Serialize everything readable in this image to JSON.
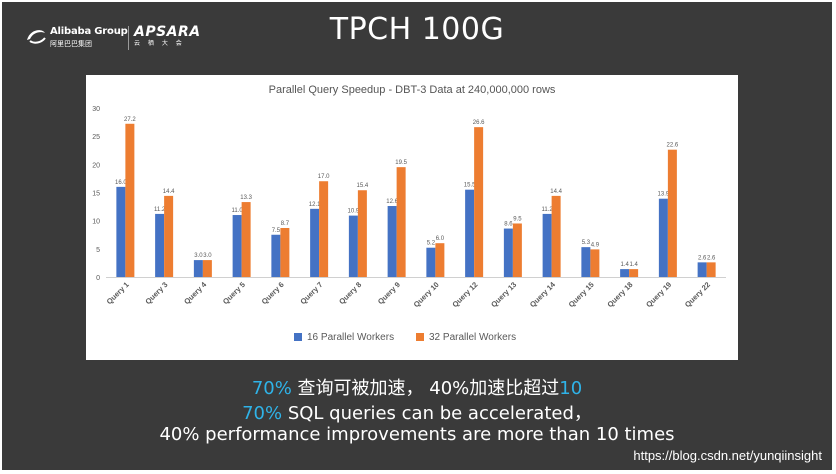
{
  "slide": {
    "title": "TPCH 100G",
    "logo_alibaba_text": "Alibaba Group",
    "logo_alibaba_sub": "阿里巴巴集团",
    "logo_apsara_text": "APSARA",
    "logo_apsara_sub": "云 栖 大 会",
    "caption_line1_hl1": "70%",
    "caption_line1_mid": " 查询可被加速， 40%加速比超过",
    "caption_line1_hl2": "10",
    "caption_line2_hl": "70%",
    "caption_line2_rest": " SQL queries can be accelerated，",
    "caption_line3": "40% performance improvements are more than 10 times",
    "watermark": "https://blog.csdn.net/yunqiinsight"
  },
  "chart_data": {
    "type": "bar",
    "title": "Parallel Query Speedup - DBT-3 Data at 240,000,000 rows",
    "categories": [
      "Query 1",
      "Query 3",
      "Query 4",
      "Query 5",
      "Query 6",
      "Query 7",
      "Query 8",
      "Query 9",
      "Query 10",
      "Query 12",
      "Query 13",
      "Query 14",
      "Query 15",
      "Query 18",
      "Query 19",
      "Query 22"
    ],
    "series": [
      {
        "name": "16 Parallel Workers",
        "color": "#4472c4",
        "values": [
          16.0,
          11.2,
          3.0,
          11.0,
          7.5,
          12.1,
          10.9,
          12.6,
          5.2,
          15.5,
          8.6,
          11.2,
          5.3,
          1.4,
          13.9,
          2.6
        ],
        "labels": [
          "16.0",
          "11.2",
          "3.0",
          "11.0",
          "7.5",
          "12.1",
          "10.9",
          "12.6",
          "5.2",
          "15.5",
          "8.6",
          "11.2",
          "5.3",
          "1.4",
          "13.9",
          "2.6"
        ]
      },
      {
        "name": "32 Parallel Workers",
        "color": "#ed7d31",
        "values": [
          27.2,
          14.4,
          3.0,
          13.3,
          8.7,
          17.0,
          15.4,
          19.5,
          6.0,
          26.6,
          9.5,
          14.4,
          4.9,
          1.4,
          22.6,
          2.6
        ],
        "labels": [
          "27.2",
          "14.4",
          "3.0",
          "13.3",
          "8.7",
          "17.0",
          "15.4",
          "19.5",
          "6.0",
          "26.6",
          "9.5",
          "14.4",
          "4.9",
          "1.4",
          "22.6",
          "2.6"
        ]
      }
    ],
    "ylim": [
      0,
      30
    ],
    "yticks": [
      "0",
      "5",
      "10",
      "15",
      "20",
      "25",
      "30"
    ],
    "grid": false,
    "legend_position": "bottom",
    "xlabel": "",
    "ylabel": ""
  }
}
